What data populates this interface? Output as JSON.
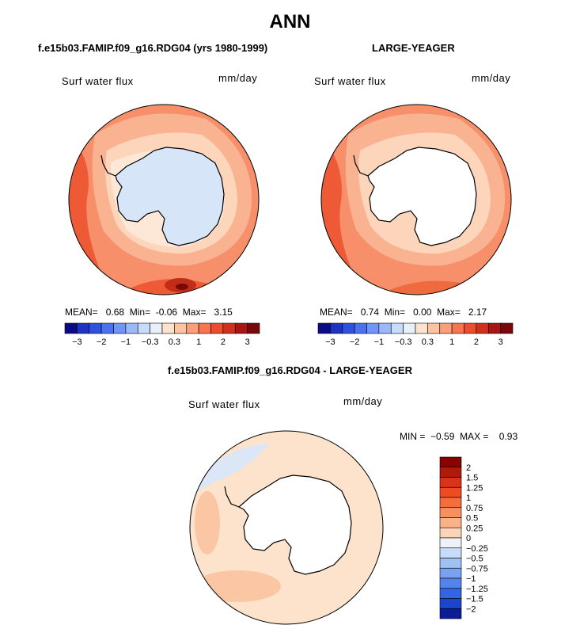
{
  "page": {
    "title": "ANN",
    "panel1_title": "f.e15b03.FAMIP.f09_g16.RDG04 (yrs 1980-1999)",
    "panel2_title": "LARGE-YEAGER",
    "diff_title": "f.e15b03.FAMIP.f09_g16.RDG04 - LARGE-YEAGER"
  },
  "chart_data": [
    {
      "type": "heatmap",
      "projection": "south-polar-stereographic",
      "title": "f.e15b03.FAMIP.f09_g16.RDG04 (yrs 1980-1999)",
      "variable": "Surf water flux",
      "units": "mm/day",
      "stats": {
        "mean_label": "MEAN=",
        "mean": "0.68",
        "min_label": "Min=",
        "min": "-0.06",
        "max_label": "Max=",
        "max": "3.15"
      },
      "colorbar": {
        "orientation": "horizontal",
        "levels": [
          -3,
          -2.5,
          -2,
          -1.5,
          -1,
          -0.5,
          -0.3,
          0,
          0.3,
          0.5,
          1,
          1.5,
          2,
          2.5,
          3
        ],
        "tick_labels": [
          "−3",
          "−2",
          "−1",
          "−0.3",
          "0.3",
          "1",
          "2",
          "3"
        ],
        "colors": [
          "#0b0b86",
          "#1d33c2",
          "#2d52df",
          "#4a72ee",
          "#6f96f6",
          "#9ab8fa",
          "#c7dcfc",
          "#e8f0fa",
          "#fde2cc",
          "#fcc3a1",
          "#fb9f7a",
          "#f8764f",
          "#ee4d2d",
          "#d2301c",
          "#a81515",
          "#7a0808"
        ]
      }
    },
    {
      "type": "heatmap",
      "projection": "south-polar-stereographic",
      "title": "LARGE-YEAGER",
      "variable": "Surf water flux",
      "units": "mm/day",
      "stats": {
        "mean_label": "MEAN=",
        "mean": "0.74",
        "min_label": "Min=",
        "min": "0.00",
        "max_label": "Max=",
        "max": "2.17"
      },
      "colorbar": {
        "orientation": "horizontal",
        "levels": [
          -3,
          -2.5,
          -2,
          -1.5,
          -1,
          -0.5,
          -0.3,
          0,
          0.3,
          0.5,
          1,
          1.5,
          2,
          2.5,
          3
        ],
        "tick_labels": [
          "−3",
          "−2",
          "−1",
          "−0.3",
          "0.3",
          "1",
          "2",
          "3"
        ],
        "colors": [
          "#0b0b86",
          "#1d33c2",
          "#2d52df",
          "#4a72ee",
          "#6f96f6",
          "#9ab8fa",
          "#c7dcfc",
          "#e8f0fa",
          "#fde2cc",
          "#fcc3a1",
          "#fb9f7a",
          "#f8764f",
          "#ee4d2d",
          "#d2301c",
          "#a81515",
          "#7a0808"
        ]
      }
    },
    {
      "type": "heatmap",
      "projection": "south-polar-stereographic",
      "title": "f.e15b03.FAMIP.f09_g16.RDG04 - LARGE-YEAGER",
      "variable": "Surf water flux",
      "units": "mm/day",
      "stats": {
        "min_label": "MIN =",
        "min": "−0.59",
        "max_label": "MAX =",
        "max": "0.93"
      },
      "colorbar": {
        "orientation": "vertical",
        "levels": [
          2,
          1.5,
          1.25,
          1,
          0.75,
          0.5,
          0.25,
          0,
          -0.25,
          -0.5,
          -0.75,
          -1,
          -1.25,
          -1.5,
          -2
        ],
        "tick_labels": [
          "2",
          "1.5",
          "1.25",
          "1",
          "0.75",
          "0.5",
          "0.25",
          "0",
          "−0.25",
          "−0.5",
          "−0.75",
          "−1",
          "−1.25",
          "−1.5",
          "−2"
        ],
        "colors": [
          "#8b0000",
          "#b01a0a",
          "#d9341a",
          "#f04a22",
          "#f56d3d",
          "#f7905f",
          "#f9b187",
          "#fcd4b6",
          "#eef2f8",
          "#c7dcf8",
          "#a0c0f6",
          "#7aa0f0",
          "#5583ec",
          "#3464e6",
          "#1c44cf",
          "#0d1a9a"
        ]
      }
    }
  ]
}
